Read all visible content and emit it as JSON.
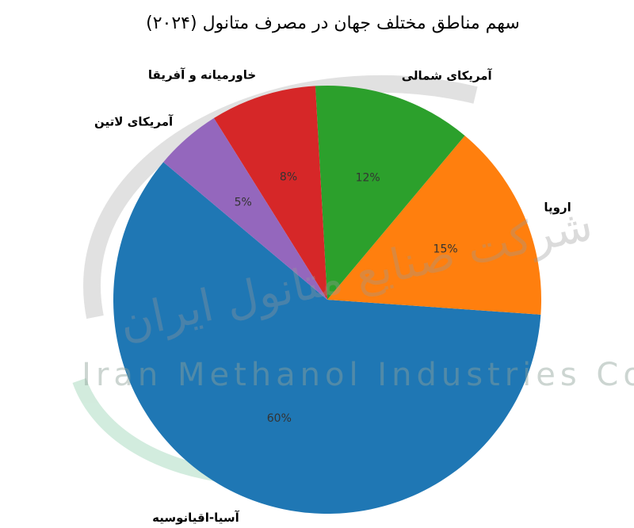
{
  "chart_data": {
    "type": "pie",
    "title": "سهم مناطق مختلف جهان در مصرف متانول (۲۰۲۴)",
    "categories": [
      "آسیا-اقیانوسیه",
      "اروپا",
      "آمریکای شمالی",
      "خاورمیانه و آفریقا",
      "آمریکای لاتین"
    ],
    "values": [
      60,
      15,
      12,
      8,
      5
    ],
    "value_labels": [
      "60%",
      "15%",
      "12%",
      "8%",
      "5%"
    ],
    "colors": [
      "#1f77b4",
      "#ff7f0e",
      "#2ca02c",
      "#d62728",
      "#9467bd"
    ]
  },
  "watermark": {
    "fa": "شرکت صنایع متانول ایران",
    "en": "Iran Methanol Industries Co"
  }
}
